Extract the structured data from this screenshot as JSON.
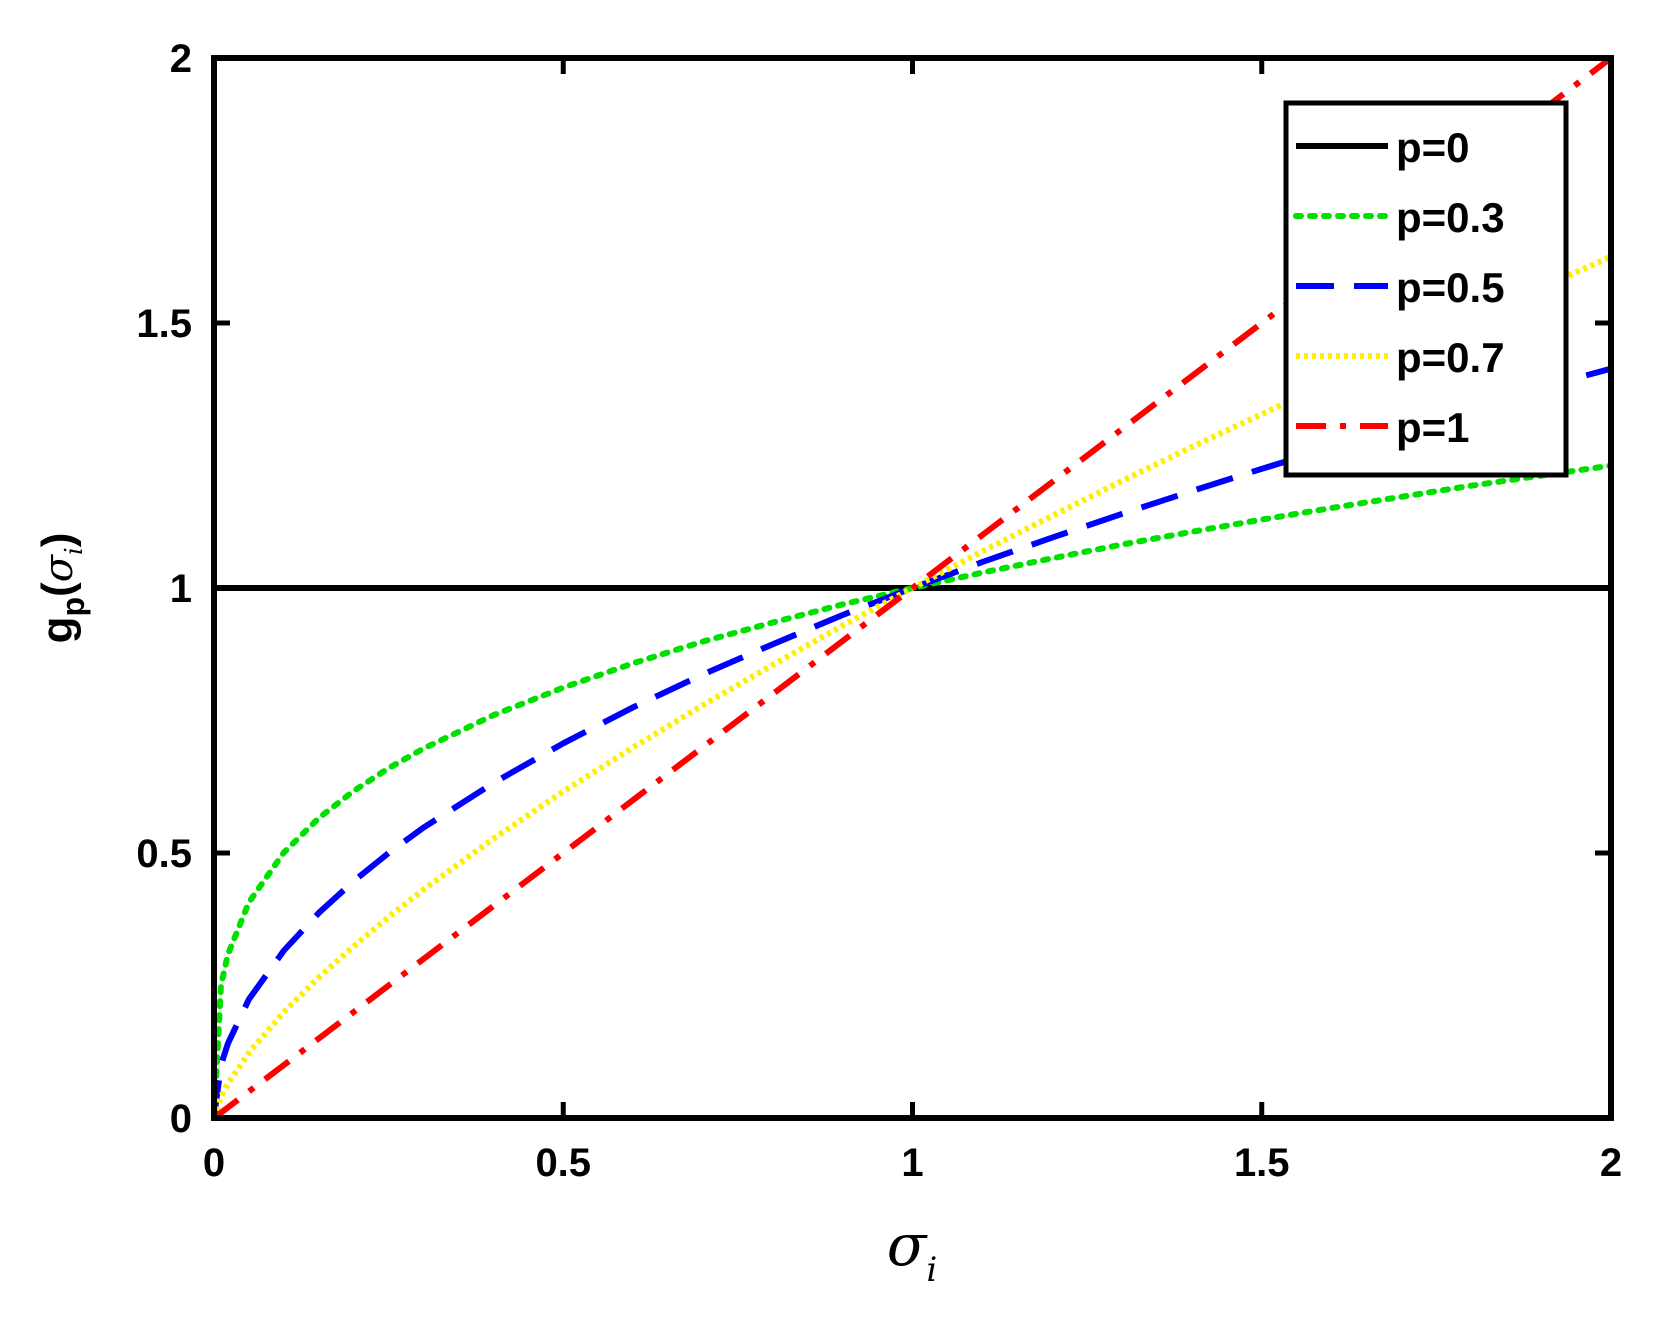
{
  "chart_data": {
    "type": "line",
    "xlabel": {
      "symbol": "σ",
      "subscript": "i"
    },
    "ylabel": {
      "func": "g",
      "func_sub": "p",
      "open": "(",
      "symbol": "σ",
      "subscript": "i",
      "close": ")"
    },
    "xlim": [
      0,
      2
    ],
    "ylim": [
      0,
      2
    ],
    "xticks": [
      0,
      0.5,
      1,
      1.5,
      2
    ],
    "xtick_labels": [
      "0",
      "0.5",
      "1",
      "1.5",
      "2"
    ],
    "yticks": [
      0,
      0.5,
      1,
      1.5,
      2
    ],
    "ytick_labels": [
      "0",
      "0.5",
      "1",
      "1.5",
      "2"
    ],
    "grid": false,
    "legend_position": "top-right",
    "x": [
      0,
      0.01,
      0.02,
      0.05,
      0.1,
      0.15,
      0.2,
      0.25,
      0.3,
      0.4,
      0.5,
      0.6,
      0.7,
      0.8,
      0.9,
      1.0,
      1.1,
      1.2,
      1.3,
      1.4,
      1.5,
      1.6,
      1.7,
      1.8,
      1.9,
      2.0
    ],
    "series": [
      {
        "name": "p=0",
        "color": "#000000",
        "style": "solid",
        "values": [
          1,
          1,
          1,
          1,
          1,
          1,
          1,
          1,
          1,
          1,
          1,
          1,
          1,
          1,
          1,
          1,
          1,
          1,
          1,
          1,
          1,
          1,
          1,
          1,
          1,
          1
        ]
      },
      {
        "name": "p=0.3",
        "color": "#00e000",
        "style": "dotted",
        "values": [
          0,
          0.251,
          0.309,
          0.407,
          0.501,
          0.566,
          0.617,
          0.66,
          0.697,
          0.76,
          0.812,
          0.858,
          0.899,
          0.935,
          0.969,
          1.0,
          1.029,
          1.056,
          1.082,
          1.106,
          1.129,
          1.151,
          1.172,
          1.193,
          1.212,
          1.231
        ]
      },
      {
        "name": "p=0.5",
        "color": "#0000ff",
        "style": "dashed",
        "values": [
          0,
          0.1,
          0.141,
          0.224,
          0.316,
          0.387,
          0.447,
          0.5,
          0.548,
          0.632,
          0.707,
          0.775,
          0.837,
          0.894,
          0.949,
          1.0,
          1.049,
          1.095,
          1.14,
          1.183,
          1.225,
          1.265,
          1.304,
          1.342,
          1.378,
          1.414
        ]
      },
      {
        "name": "p=0.7",
        "color": "#ffee00",
        "style": "dense-dotted",
        "values": [
          0,
          0.04,
          0.065,
          0.123,
          0.2,
          0.265,
          0.324,
          0.379,
          0.431,
          0.527,
          0.616,
          0.699,
          0.779,
          0.855,
          0.929,
          1.0,
          1.069,
          1.136,
          1.202,
          1.266,
          1.328,
          1.389,
          1.45,
          1.509,
          1.567,
          1.625
        ]
      },
      {
        "name": "p=1",
        "color": "#ff0000",
        "style": "dashdot",
        "values": [
          0,
          0.01,
          0.02,
          0.05,
          0.1,
          0.15,
          0.2,
          0.25,
          0.3,
          0.4,
          0.5,
          0.6,
          0.7,
          0.8,
          0.9,
          1.0,
          1.1,
          1.2,
          1.3,
          1.4,
          1.5,
          1.6,
          1.7,
          1.8,
          1.9,
          2.0
        ]
      }
    ]
  }
}
